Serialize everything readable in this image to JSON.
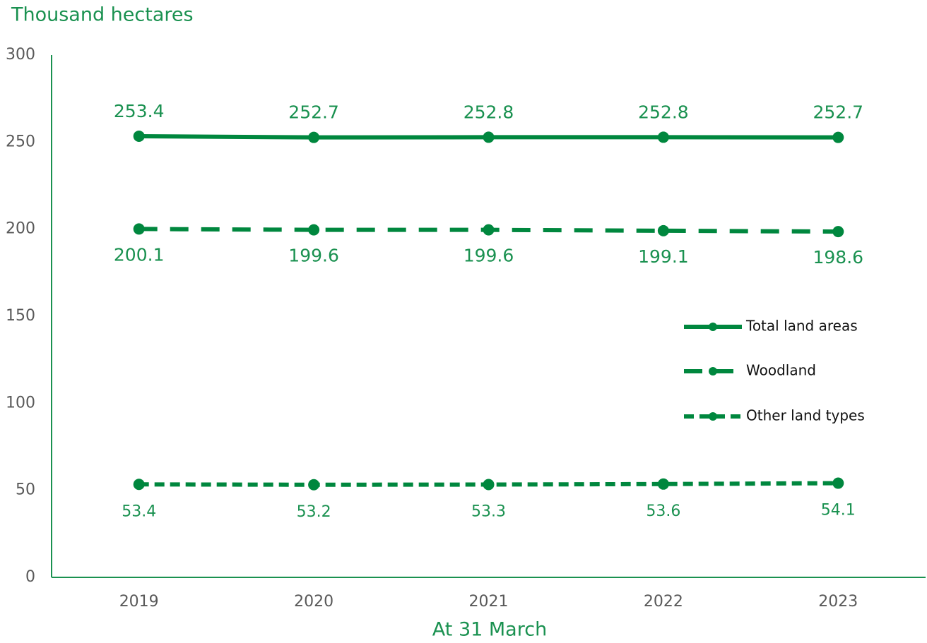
{
  "chart_data": {
    "type": "line",
    "title": "Thousand hectares",
    "x_label": "At 31 March",
    "categories": [
      "2019",
      "2020",
      "2021",
      "2022",
      "2023"
    ],
    "series": [
      {
        "name": "Total land areas",
        "color": "#00873e",
        "values": [
          253.4,
          252.7,
          252.8,
          252.8,
          252.7
        ]
      },
      {
        "name": "Woodland",
        "color": "#00873e",
        "values": [
          200.1,
          199.6,
          199.6,
          199.1,
          198.6
        ]
      },
      {
        "name": "Other land types",
        "color": "#00873e",
        "values": [
          53.4,
          53.2,
          53.3,
          53.6,
          54.1
        ]
      }
    ],
    "ylim": [
      0,
      300
    ],
    "yticks": [
      0,
      50,
      100,
      150,
      200,
      250,
      300
    ],
    "grid": false
  }
}
